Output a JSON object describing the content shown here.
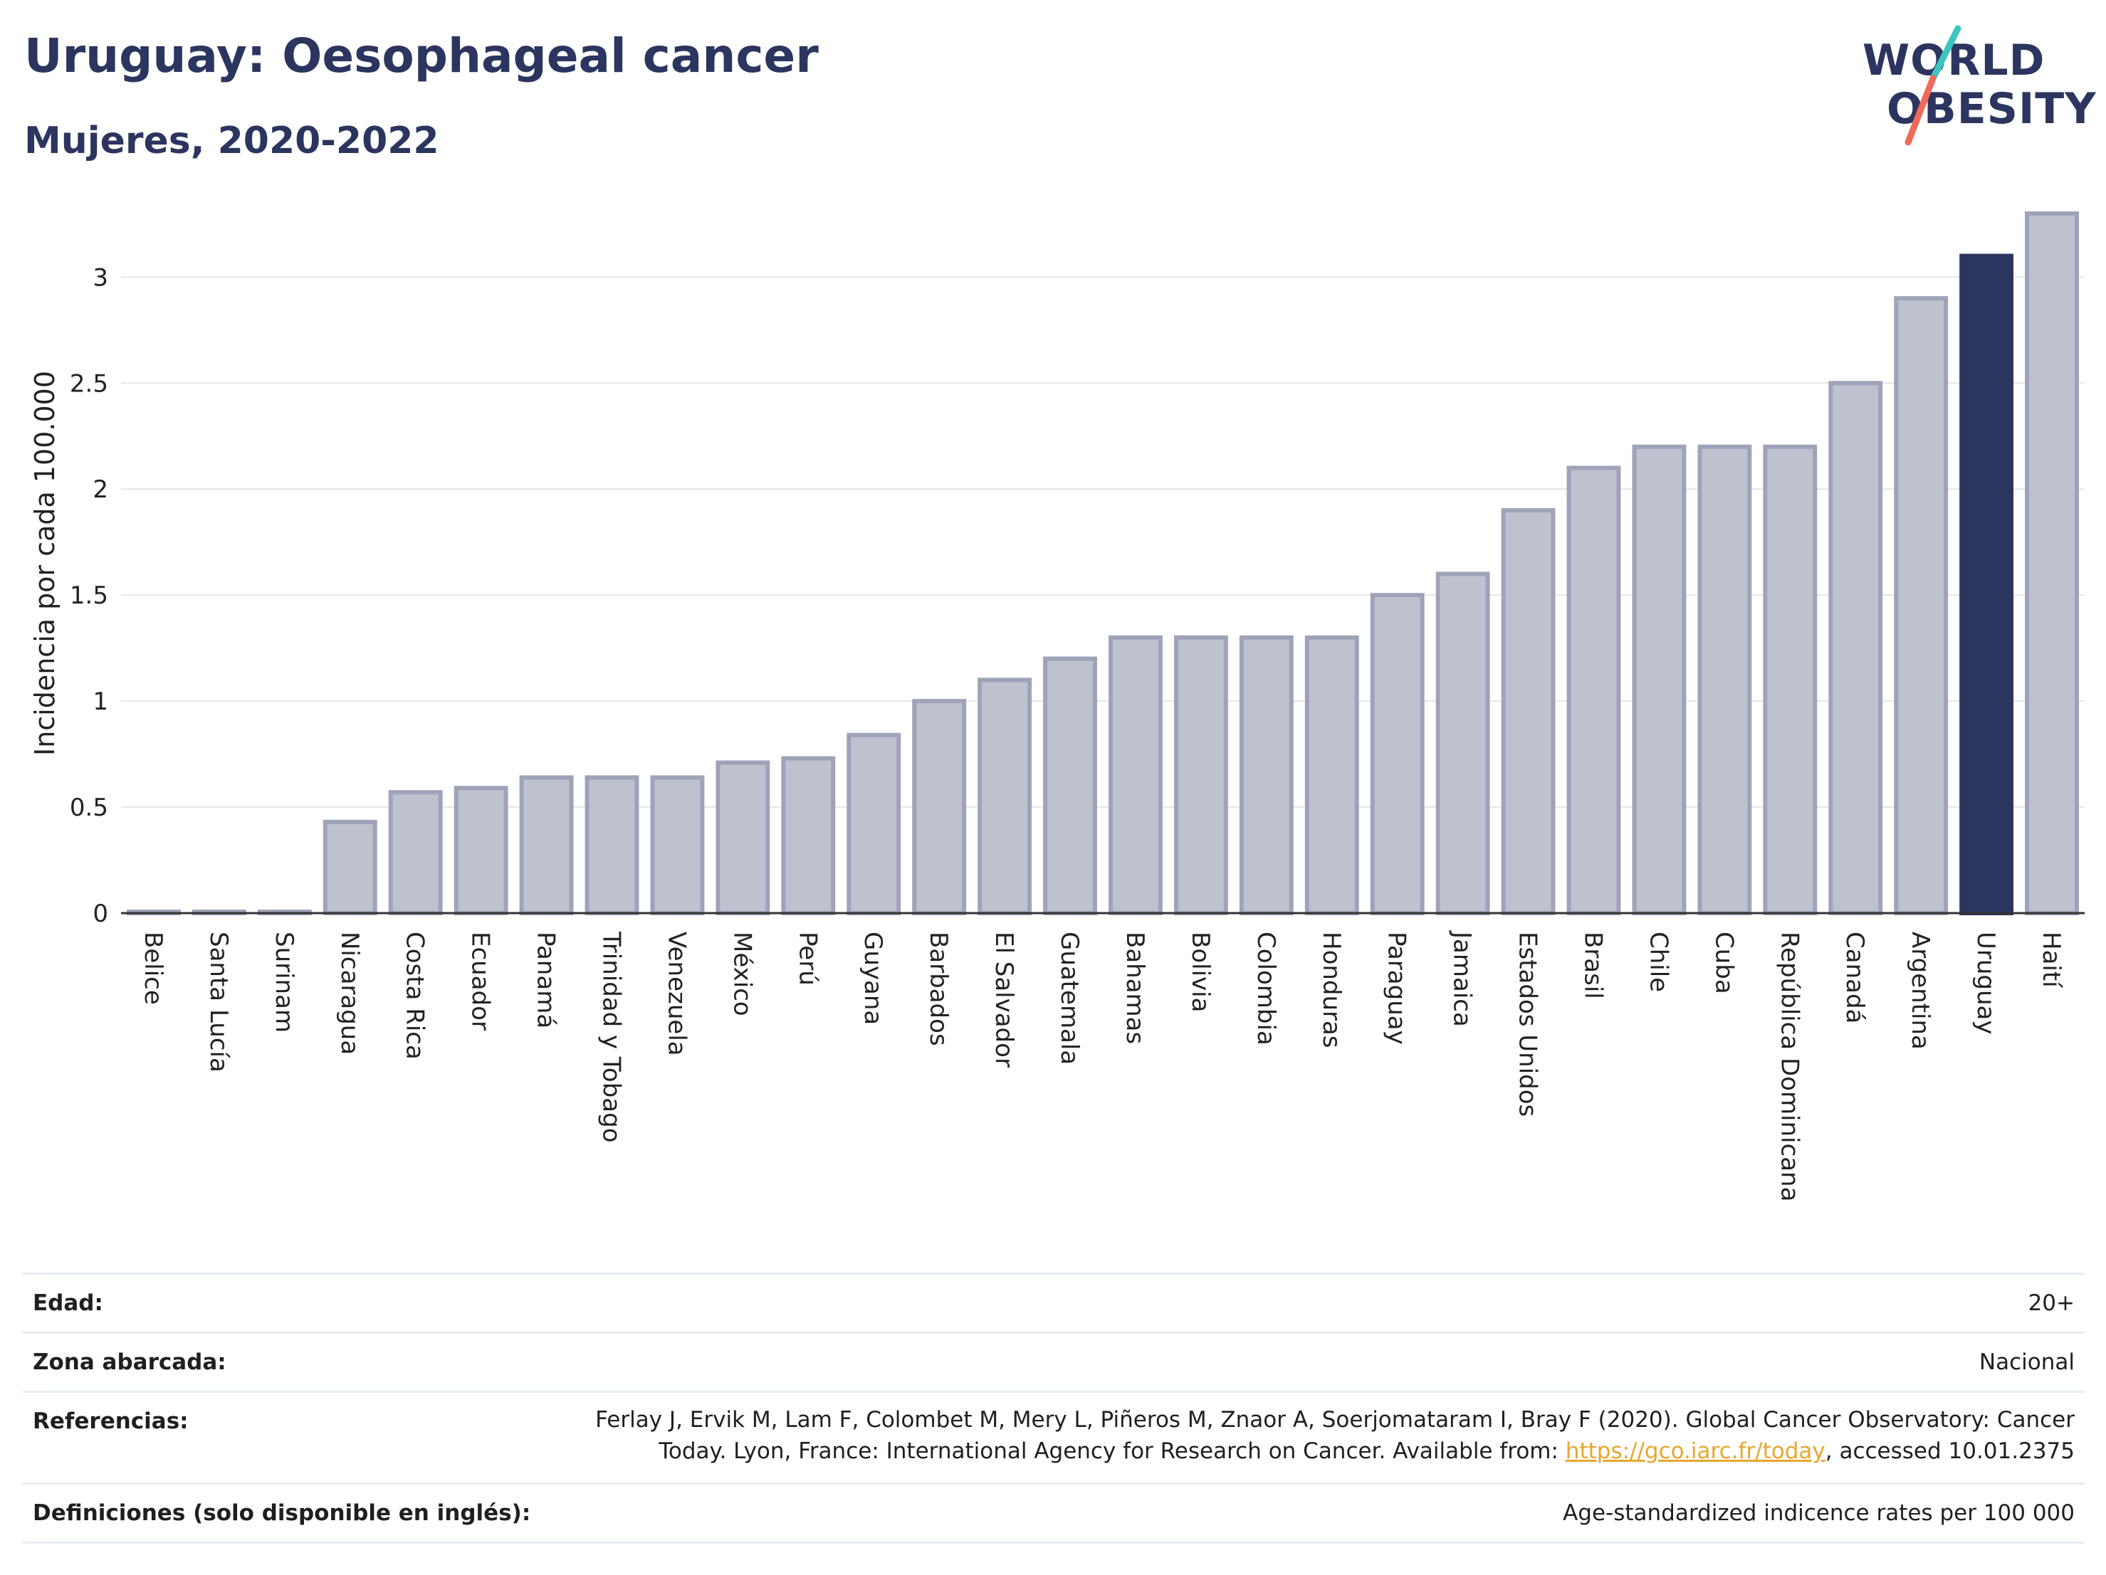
{
  "header": {
    "title": "Uruguay: Oesophageal cancer",
    "subtitle": "Mujeres, 2020-2022"
  },
  "logo": {
    "line1": "WORLD",
    "line2": "OBESITY",
    "colors": {
      "text": "#2b355f",
      "teal": "#3cc6c0",
      "coral": "#ef6a5a"
    }
  },
  "chart_data": {
    "type": "bar",
    "ylabel": "Incidencia por cada 100.000",
    "xlabel": "",
    "ylim": [
      0,
      3.3
    ],
    "yticks": [
      0,
      0.5,
      1,
      1.5,
      2,
      2.5,
      3
    ],
    "ytick_labels": [
      "0",
      "0.5",
      "1",
      "1.5",
      "2",
      "2.5",
      "3"
    ],
    "grid": true,
    "highlight": "Uruguay",
    "colors": {
      "bar": "#bec2cf",
      "bar_border": "#9ea3b8",
      "highlight": "#2b355f",
      "grid": "#e6e6e6"
    },
    "categories": [
      "Belice",
      "Santa Lucía",
      "Surinam",
      "Nicaragua",
      "Costa Rica",
      "Ecuador",
      "Panamá",
      "Trinidad y Tobago",
      "Venezuela",
      "México",
      "Perú",
      "Guyana",
      "Barbados",
      "El Salvador",
      "Guatemala",
      "Bahamas",
      "Bolivia",
      "Colombia",
      "Honduras",
      "Paraguay",
      "Jamaica",
      "Estados Unidos",
      "Brasil",
      "Chile",
      "Cuba",
      "República Dominicana",
      "Canadá",
      "Argentina",
      "Uruguay",
      "Haití"
    ],
    "values": [
      0.0,
      0.0,
      0.0,
      0.43,
      0.57,
      0.59,
      0.64,
      0.64,
      0.64,
      0.71,
      0.73,
      0.84,
      1.0,
      1.1,
      1.2,
      1.3,
      1.3,
      1.3,
      1.3,
      1.5,
      1.6,
      1.9,
      2.1,
      2.2,
      2.2,
      2.2,
      2.5,
      2.9,
      3.1,
      3.3
    ]
  },
  "info": {
    "age": {
      "label": "Edad:",
      "value": "20+"
    },
    "zone": {
      "label": "Zona abarcada:",
      "value": "Nacional"
    },
    "references": {
      "label": "Referencias:",
      "line1": "Ferlay J, Ervik M, Lam F, Colombet M, Mery L, Piñeros M, Znaor A, Soerjomataram I, Bray F (2020). Global Cancer Observatory: Cancer",
      "line2_pre": "Today. Lyon, France: International Agency for Research on Cancer. Available from: ",
      "link": "https://gco.iarc.fr/today",
      "line2_post": ", accessed 10.01.2375"
    },
    "definitions": {
      "label": "Definiciones (solo disponible en inglés):",
      "value": "Age-standardized indicence rates per 100 000"
    }
  }
}
